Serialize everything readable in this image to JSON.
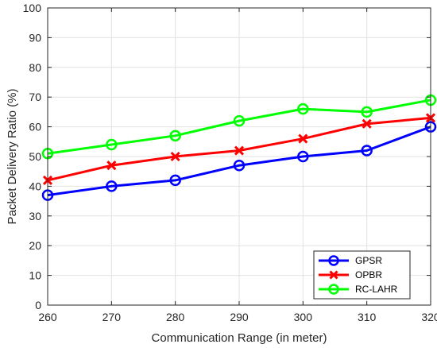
{
  "chart_data": {
    "type": "line",
    "title": "",
    "xlabel": "Communication Range (in meter)",
    "ylabel": "Packet Delivery Ratio (%)",
    "x": [
      260,
      270,
      280,
      290,
      300,
      310,
      320
    ],
    "xlim": [
      260,
      320
    ],
    "ylim": [
      0,
      100
    ],
    "xticks": [
      260,
      270,
      280,
      290,
      300,
      310,
      320
    ],
    "yticks": [
      0,
      10,
      20,
      30,
      40,
      50,
      60,
      70,
      80,
      90,
      100
    ],
    "grid": true,
    "legend_position": "bottom-right",
    "series": [
      {
        "name": "GPSR",
        "color": "#0000ff",
        "marker": "circle",
        "values": [
          37,
          40,
          42,
          47,
          50,
          52,
          60
        ]
      },
      {
        "name": "OPBR",
        "color": "#ff0000",
        "marker": "x",
        "values": [
          42,
          47,
          50,
          52,
          56,
          61,
          63
        ]
      },
      {
        "name": "RC-LAHR",
        "color": "#00ff00",
        "marker": "circle",
        "values": [
          51,
          54,
          57,
          62,
          66,
          65,
          69
        ]
      }
    ]
  }
}
